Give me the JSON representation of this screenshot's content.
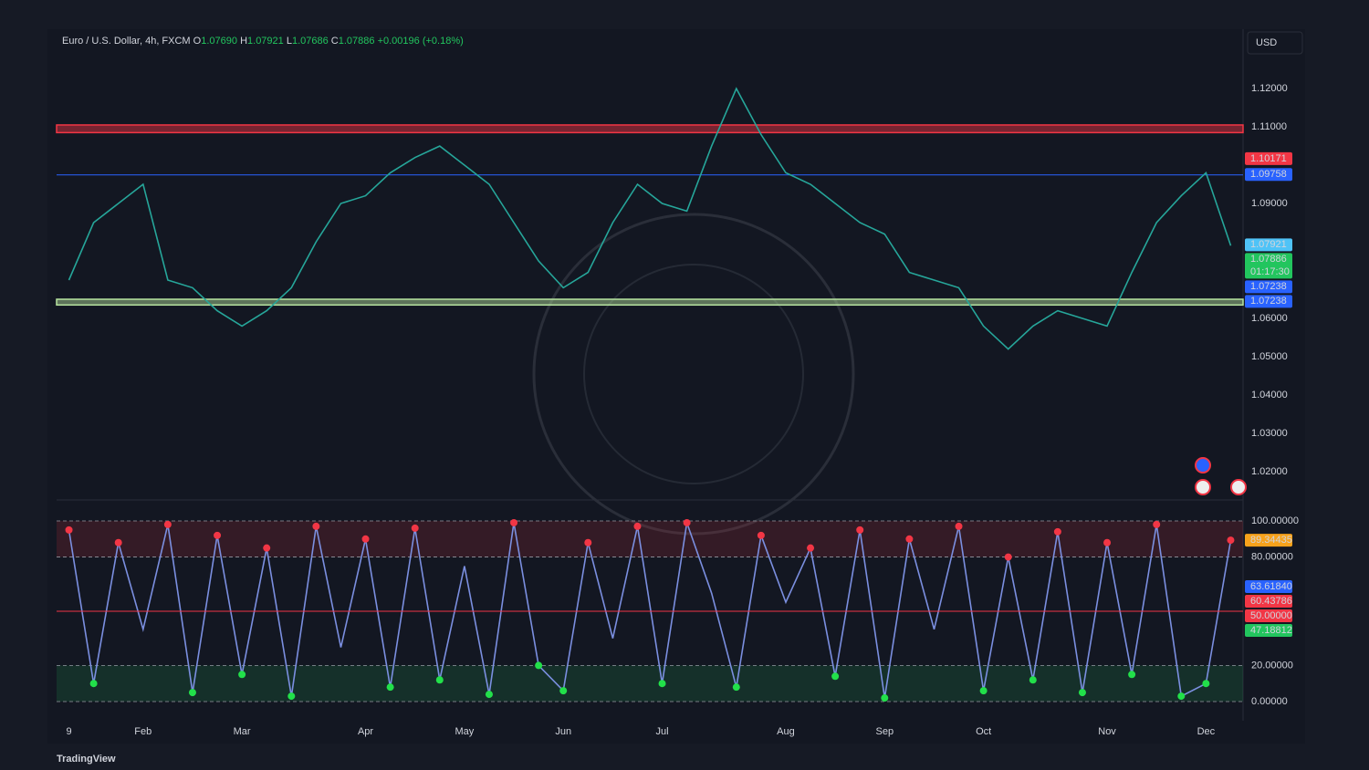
{
  "chart_data": [
    {
      "type": "line",
      "legend": {
        "symbol": "Euro / U.S. Dollar, 4h, FXCM",
        "open_label": "O",
        "open": "1.07690",
        "high_label": "H",
        "high": "1.07921",
        "low_label": "L",
        "low": "1.07686",
        "close_label": "C",
        "close": "1.07886",
        "change": "+0.00196 (+0.18%)"
      },
      "currency": "USD",
      "color": "#26a69a",
      "values": [
        1.07,
        1.085,
        1.09,
        1.095,
        1.07,
        1.068,
        1.062,
        1.058,
        1.062,
        1.068,
        1.08,
        1.09,
        1.092,
        1.098,
        1.102,
        1.105,
        1.1,
        1.095,
        1.085,
        1.075,
        1.068,
        1.072,
        1.085,
        1.095,
        1.09,
        1.088,
        1.105,
        1.12,
        1.108,
        1.098,
        1.095,
        1.09,
        1.085,
        1.082,
        1.072,
        1.07,
        1.068,
        1.058,
        1.052,
        1.058,
        1.062,
        1.06,
        1.058,
        1.072,
        1.085,
        1.092,
        1.098,
        1.079
      ],
      "ylim": [
        1.0126,
        1.1355
      ],
      "yticks": [
        {
          "value": 1.12,
          "label": "1.12000"
        },
        {
          "value": 1.11,
          "label": "1.11000"
        },
        {
          "value": 1.09,
          "label": "1.09000"
        },
        {
          "value": 1.06,
          "label": "1.06000"
        },
        {
          "value": 1.05,
          "label": "1.05000"
        },
        {
          "value": 1.04,
          "label": "1.04000"
        },
        {
          "value": 1.03,
          "label": "1.03000"
        },
        {
          "value": 1.02,
          "label": "1.02000"
        }
      ],
      "bands": [
        {
          "from": 1.1085,
          "to": 1.1105,
          "color": "#f23645"
        },
        {
          "from": 1.0635,
          "to": 1.065,
          "color": "#b7e4a0"
        },
        {
          "from": 1.09758,
          "to": 1.09758,
          "color": "#2962ff"
        }
      ],
      "price_labels": [
        {
          "value": 1.10171,
          "color": "#f23645"
        },
        {
          "value": 1.09758,
          "color": "#2962ff"
        },
        {
          "value": 1.07921,
          "color": "#4fc3f7"
        },
        {
          "value": 1.07886,
          "color": "#22c55e",
          "sub": "01:17:30"
        },
        {
          "value": 1.07238,
          "color": "#2962ff"
        },
        {
          "value": 1.07238,
          "color": "#2962ff"
        }
      ]
    },
    {
      "type": "line",
      "color": "#7b8fe0",
      "categories": [
        "9",
        null,
        null,
        "Feb",
        null,
        null,
        null,
        "Mar",
        null,
        null,
        null,
        null,
        "Apr",
        null,
        null,
        null,
        "May",
        null,
        null,
        null,
        "Jun",
        null,
        null,
        null,
        "Jul",
        null,
        null,
        null,
        null,
        "Aug",
        null,
        null,
        null,
        "Sep",
        null,
        null,
        null,
        "Oct",
        null,
        null,
        null,
        null,
        "Nov",
        null,
        null,
        null,
        "Dec",
        null
      ],
      "values": [
        95,
        10,
        88,
        40,
        98,
        5,
        92,
        15,
        85,
        3,
        97,
        30,
        90,
        8,
        96,
        12,
        75,
        4,
        99,
        20,
        6,
        88,
        35,
        97,
        10,
        99,
        60,
        8,
        92,
        55,
        85,
        14,
        95,
        2,
        90,
        40,
        97,
        6,
        80,
        12,
        94,
        5,
        88,
        15,
        98,
        3,
        10,
        89.34435
      ],
      "ylim": [
        -10.6,
        111.6
      ],
      "yticks": [
        {
          "value": 100,
          "label": "100.00000"
        },
        {
          "value": 80,
          "label": "80.00000"
        },
        {
          "value": 20,
          "label": "20.00000"
        },
        {
          "value": 0,
          "label": "0.00000"
        }
      ],
      "zones": [
        {
          "from": 80,
          "to": 100,
          "color": "#f23645"
        },
        {
          "from": 0,
          "to": 20,
          "color": "#22c55e"
        }
      ],
      "price_labels": [
        {
          "value": 89.34435,
          "color": "#f7a21b"
        },
        {
          "value": 63.6184,
          "label": "63.61840",
          "color": "#2962ff"
        },
        {
          "value": 60.43786,
          "color": "#f23645"
        },
        {
          "value": 50,
          "label": "50.00000",
          "color": "#f23645",
          "line": true
        },
        {
          "value": 47.18812,
          "color": "#22c55e"
        }
      ]
    }
  ],
  "footer": "TradingView"
}
